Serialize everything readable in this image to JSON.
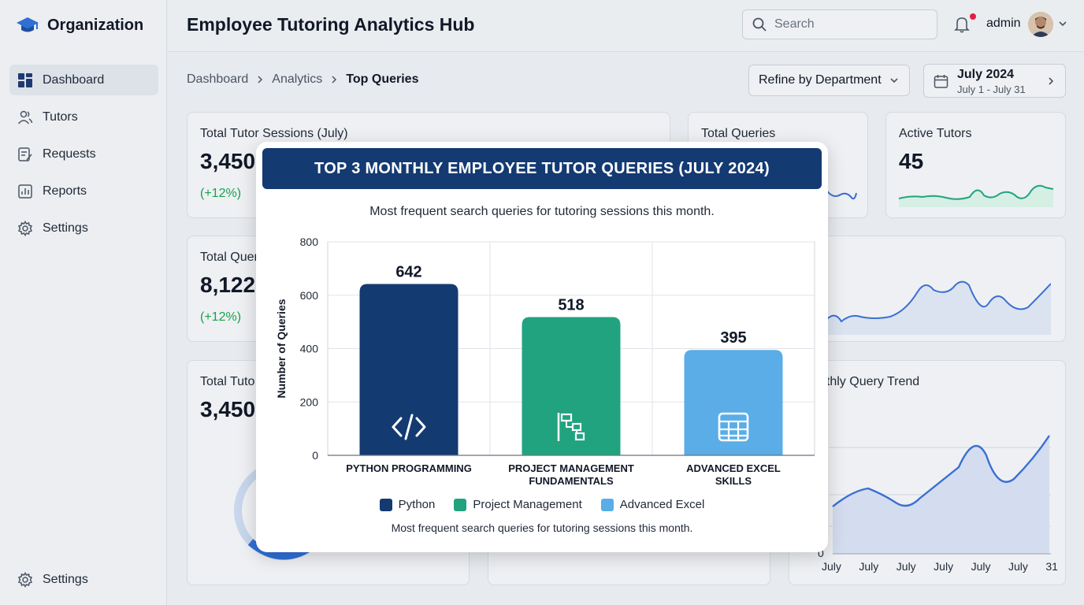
{
  "brand": {
    "name": "Organization"
  },
  "sidebar": {
    "items": [
      {
        "label": "Dashboard",
        "icon": "grid-icon"
      },
      {
        "label": "Tutors",
        "icon": "users-icon"
      },
      {
        "label": "Requests",
        "icon": "form-icon"
      },
      {
        "label": "Reports",
        "icon": "bar-chart-icon"
      },
      {
        "label": "Settings",
        "icon": "gear-icon"
      }
    ],
    "bottom": {
      "label": "Settings",
      "icon": "gear-icon"
    }
  },
  "header": {
    "title": "Employee Tutoring Analytics Hub",
    "search_placeholder": "Search",
    "user": "admin"
  },
  "breadcrumb": [
    "Dashboard",
    "Analytics",
    "Top Queries"
  ],
  "filters": {
    "department": "Refine by Department",
    "date_main": "July 2024",
    "date_sub": "July 1 - July 31"
  },
  "cards": {
    "sessions": {
      "title": "Total Tutor Sessions (July)",
      "value": "3,450",
      "delta": "(+12%)"
    },
    "queries": {
      "title": "Total Queries"
    },
    "active_tutors": {
      "title": "Active Tutors",
      "value": "45"
    },
    "queries2": {
      "title": "Total Quer",
      "value": "8,122",
      "delta": "(+12%)"
    },
    "tutors3": {
      "title": "Total Tuto",
      "value": "3,450"
    },
    "trend": {
      "title": "nthly Query Trend",
      "axis_zero": "0",
      "x_labels": [
        "July",
        "July",
        "July",
        "July",
        "July",
        "July",
        "31"
      ]
    }
  },
  "colors": {
    "primary": "#143a72",
    "green": "#22a37f",
    "light_blue": "#5aade6",
    "accent_line": "#3b6fd1"
  },
  "modal": {
    "title": "TOP 3 MONTHLY EMPLOYEE TUTOR QUERIES (JULY 2024)",
    "subtitle": "Most frequent search queries for tutoring sessions this month.",
    "footer": "Most frequent search queries for tutoring sessions this month."
  },
  "chart_data": {
    "type": "bar",
    "categories": [
      "PYTHON PROGRAMMING",
      "PROJECT MANAGEMENT FUNDAMENTALS",
      "ADVANCED EXCEL SKILLS"
    ],
    "values": [
      642,
      518,
      395
    ],
    "ylabel": "Number of Queries",
    "ylim": [
      0,
      800
    ],
    "yticks": [
      0,
      200,
      400,
      600,
      800
    ],
    "grid": true,
    "legend": [
      "Python",
      "Project Management",
      "Advanced Excel"
    ],
    "legend_placement": "bottom",
    "bar_icons": [
      "code-icon",
      "flowchart-icon",
      "spreadsheet-icon"
    ]
  }
}
